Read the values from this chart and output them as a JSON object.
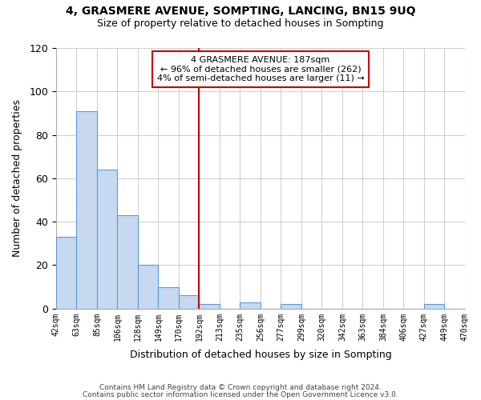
{
  "title_line1": "4, GRASMERE AVENUE, SOMPTING, LANCING, BN15 9UQ",
  "title_line2": "Size of property relative to detached houses in Sompting",
  "xlabel": "Distribution of detached houses by size in Sompting",
  "ylabel": "Number of detached properties",
  "bin_labels": [
    "42sqm",
    "63sqm",
    "85sqm",
    "106sqm",
    "128sqm",
    "149sqm",
    "170sqm",
    "192sqm",
    "213sqm",
    "235sqm",
    "256sqm",
    "277sqm",
    "299sqm",
    "320sqm",
    "342sqm",
    "363sqm",
    "384sqm",
    "406sqm",
    "427sqm",
    "449sqm",
    "470sqm"
  ],
  "bar_heights": [
    33,
    91,
    64,
    43,
    20,
    10,
    6,
    2,
    0,
    3,
    0,
    2,
    0,
    0,
    0,
    0,
    0,
    0,
    2,
    0
  ],
  "bar_color": "#c6d9f0",
  "bar_edge_color": "#5b9bd5",
  "vline_x": 7.0,
  "vline_color": "#cc0000",
  "annotation_title": "4 GRASMERE AVENUE: 187sqm",
  "annotation_line1": "← 96% of detached houses are smaller (262)",
  "annotation_line2": "4% of semi-detached houses are larger (11) →",
  "annotation_box_color": "#ffffff",
  "annotation_box_edge": "#cc0000",
  "footer_line1": "Contains HM Land Registry data © Crown copyright and database right 2024.",
  "footer_line2": "Contains public sector information licensed under the Open Government Licence v3.0.",
  "ylim": [
    0,
    120
  ],
  "yticks": [
    0,
    20,
    40,
    60,
    80,
    100,
    120
  ],
  "bg_color": "#ffffff",
  "grid_color": "#d0d0d0"
}
